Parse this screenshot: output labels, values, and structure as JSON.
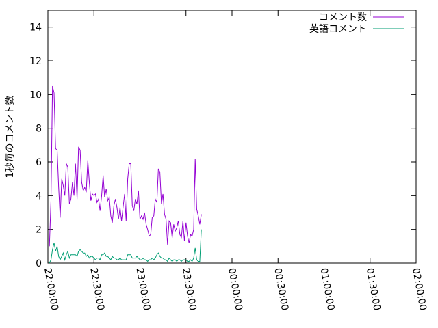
{
  "chart_data": {
    "type": "line",
    "ylabel": "1秒毎のコメント数",
    "xlabel": "",
    "title": "",
    "x_start": "22:00:00",
    "x_step_seconds": 60,
    "x_ticks": [
      "22:00:00",
      "22:30:00",
      "23:00:00",
      "23:30:00",
      "00:00:00",
      "00:30:00",
      "01:00:00",
      "01:30:00",
      "02:00:00"
    ],
    "y_ticks": [
      0,
      2,
      4,
      6,
      8,
      10,
      12,
      14
    ],
    "ylim": [
      0,
      15
    ],
    "grid": false,
    "legend_position": "top-right",
    "series": [
      {
        "name": "コメント数",
        "color": "#9400d3",
        "values": [
          1.0,
          3.7,
          10.5,
          10.1,
          6.8,
          6.7,
          4.5,
          2.7,
          5.0,
          4.6,
          4.0,
          5.9,
          5.7,
          3.5,
          3.8,
          4.8,
          4.0,
          5.9,
          3.8,
          6.9,
          6.7,
          4.8,
          4.3,
          4.5,
          4.2,
          6.1,
          4.8,
          3.7,
          4.1,
          4.0,
          4.1,
          3.6,
          3.8,
          3.1,
          4.0,
          5.2,
          3.9,
          4.4,
          3.7,
          3.9,
          2.8,
          2.4,
          3.4,
          3.8,
          3.3,
          2.6,
          3.3,
          2.5,
          3.3,
          4.1,
          2.5,
          5.0,
          5.9,
          5.9,
          3.4,
          3.1,
          3.8,
          3.5,
          4.3,
          2.6,
          2.8,
          2.6,
          3.0,
          2.3,
          2.0,
          1.6,
          1.7,
          2.7,
          2.8,
          3.8,
          3.6,
          5.6,
          5.4,
          3.5,
          4.1,
          2.9,
          2.6,
          1.1,
          2.5,
          2.4,
          1.5,
          2.3,
          1.9,
          2.1,
          2.5,
          1.7,
          1.5,
          2.5,
          1.3,
          2.4,
          1.6,
          1.2,
          1.7,
          1.6,
          2.0,
          6.2,
          3.2,
          2.8,
          2.3,
          2.9
        ]
      },
      {
        "name": "英語コメント",
        "color": "#009e73",
        "values": [
          0.0,
          0.2,
          0.8,
          1.2,
          0.7,
          1.0,
          0.4,
          0.2,
          0.4,
          0.6,
          0.2,
          0.5,
          0.7,
          0.3,
          0.5,
          0.5,
          0.5,
          0.5,
          0.4,
          0.7,
          0.8,
          0.7,
          0.6,
          0.6,
          0.4,
          0.5,
          0.3,
          0.4,
          0.4,
          0.3,
          0.2,
          0.3,
          0.3,
          0.2,
          0.5,
          0.5,
          0.6,
          0.4,
          0.4,
          0.3,
          0.2,
          0.4,
          0.3,
          0.3,
          0.2,
          0.2,
          0.3,
          0.2,
          0.2,
          0.2,
          0.2,
          0.5,
          0.5,
          0.5,
          0.3,
          0.3,
          0.3,
          0.4,
          0.3,
          0.2,
          0.2,
          0.3,
          0.2,
          0.2,
          0.1,
          0.2,
          0.2,
          0.3,
          0.2,
          0.3,
          0.5,
          0.6,
          0.4,
          0.3,
          0.3,
          0.2,
          0.2,
          0.1,
          0.3,
          0.2,
          0.1,
          0.2,
          0.2,
          0.1,
          0.2,
          0.2,
          0.1,
          0.2,
          0.2,
          0.2,
          0.1,
          0.1,
          0.2,
          0.1,
          0.3,
          0.9,
          0.2,
          0.1,
          0.1,
          2.0
        ]
      }
    ]
  }
}
